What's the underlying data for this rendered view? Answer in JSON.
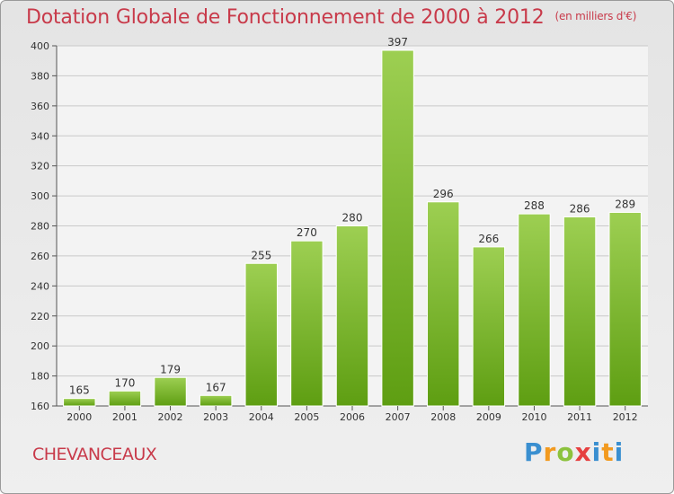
{
  "header": {
    "title": "Dotation Globale de Fonctionnement de 2000 à 2012",
    "unit": "(en milliers d'€)"
  },
  "footer": {
    "city": "CHEVANCEAUX",
    "logo_text": "Proxiti"
  },
  "colors": {
    "title": "#c83a4a",
    "bar_top": "#9dcf52",
    "bar_bottom": "#5e9e12",
    "grid": "#c9c9c9",
    "axis": "#555555"
  },
  "chart_data": {
    "type": "bar",
    "title": "Dotation Globale de Fonctionnement de 2000 à 2012",
    "xlabel": "",
    "ylabel": "",
    "categories": [
      "2000",
      "2001",
      "2002",
      "2003",
      "2004",
      "2005",
      "2006",
      "2007",
      "2008",
      "2009",
      "2010",
      "2011",
      "2012"
    ],
    "values": [
      165,
      170,
      179,
      167,
      255,
      270,
      280,
      397,
      296,
      266,
      288,
      286,
      289
    ],
    "ylim": [
      160,
      400
    ],
    "yticks": [
      160,
      180,
      200,
      220,
      240,
      260,
      280,
      300,
      320,
      340,
      360,
      380,
      400
    ],
    "grid": true,
    "legend": "none"
  }
}
